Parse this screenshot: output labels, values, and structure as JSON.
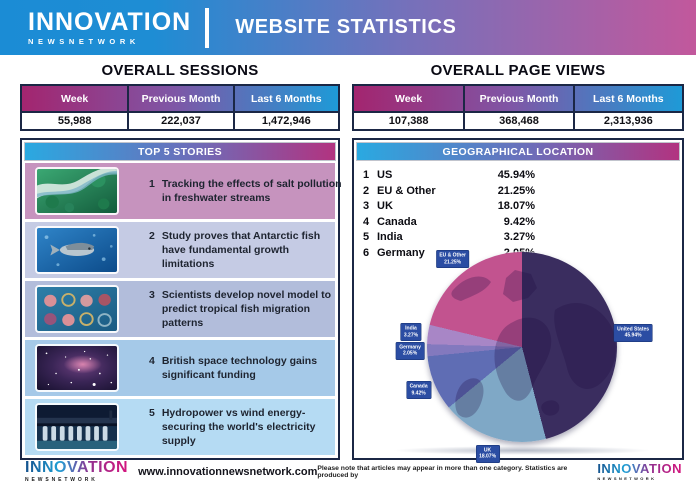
{
  "header": {
    "logo_title": "INNOVATION",
    "logo_subtitle": "NEWSNETWORK",
    "title": "WEBSITE STATISTICS"
  },
  "sessions": {
    "title": "OVERALL SESSIONS",
    "columns": [
      "Week",
      "Previous Month",
      "Last 6 Months"
    ],
    "values": [
      "55,988",
      "222,037",
      "1,472,946"
    ]
  },
  "pageviews": {
    "title": "OVERALL PAGE VIEWS",
    "columns": [
      "Week",
      "Previous Month",
      "Last 6 Months"
    ],
    "values": [
      "107,388",
      "368,468",
      "2,313,936"
    ]
  },
  "stories": {
    "title": "TOP 5 STORIES",
    "items": [
      {
        "rank": "1",
        "text": "Tracking the effects of salt pollution in freshwater streams",
        "thumb": "aerial-river-photo"
      },
      {
        "rank": "2",
        "text": "Study proves that Antarctic fish have fundamental growth limitations",
        "thumb": "antarctic-fish-photo"
      },
      {
        "rank": "3",
        "text": "Scientists develop novel model to predict tropical fish migration patterns",
        "thumb": "petri-dishes-photo"
      },
      {
        "rank": "4",
        "text": "British space technology gains significant funding",
        "thumb": "galaxy-photo"
      },
      {
        "rank": "5",
        "text": "Hydropower vs wind energy- securing the world's electricity supply",
        "thumb": "hydropower-dam-photo"
      }
    ]
  },
  "geo": {
    "title": "GEOGRAPHICAL LOCATION",
    "entries": [
      {
        "rank": "1",
        "label": "US",
        "value": "45.94%"
      },
      {
        "rank": "2",
        "label": "EU & Other",
        "value": "21.25%"
      },
      {
        "rank": "3",
        "label": "UK",
        "value": "18.07%"
      },
      {
        "rank": "4",
        "label": "Canada",
        "value": "9.42%"
      },
      {
        "rank": "5",
        "label": "India",
        "value": "3.27%"
      },
      {
        "rank": "6",
        "label": "Germany",
        "value": "2.05%"
      }
    ]
  },
  "chart_data": {
    "type": "pie",
    "title": "GEOGRAPHICAL LOCATION",
    "legend_position": "callout-labels-around-pie",
    "start_angle_deg": 0,
    "direction": "clockwise-from-12-oclock",
    "slices": [
      {
        "label": "United States",
        "value": 45.94,
        "display": "45.94%",
        "color": "#3A2D5F"
      },
      {
        "label": "UK",
        "value": 18.07,
        "display": "18.07%",
        "color": "#7FA8C6"
      },
      {
        "label": "Canada",
        "value": 9.42,
        "display": "9.42%",
        "color": "#5F6DB4"
      },
      {
        "label": "Germany",
        "value": 2.05,
        "display": "2.05%",
        "color": "#8379BE"
      },
      {
        "label": "India",
        "value": 3.27,
        "display": "3.27%",
        "color": "#A886C6"
      },
      {
        "label": "EU & Other",
        "value": 21.25,
        "display": "21.25%",
        "color": "#C2538F"
      }
    ]
  },
  "footer": {
    "url": "www.innovationnewsnetwork.com",
    "note": "Please note that articles may appear in more than one category. Statistics are produced by",
    "logo_title": "INNOVATION",
    "logo_subtitle": "NEWSNETWORK"
  }
}
